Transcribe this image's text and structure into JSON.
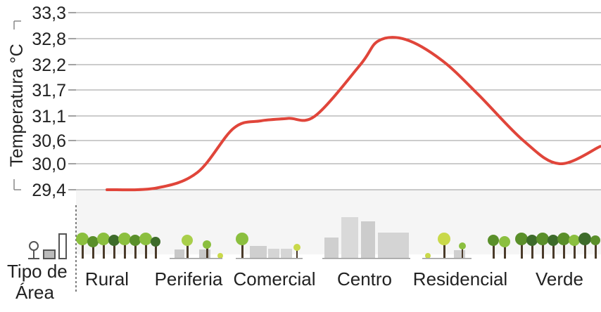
{
  "chart_data": {
    "type": "line",
    "title": "",
    "ylabel": "Temperatura °C",
    "xlabel": "Tipo de Área",
    "xlabel_lines": [
      "Tipo de",
      "Área"
    ],
    "yticks": [
      "33,3",
      "32,8",
      "32,2",
      "31,7",
      "31,1",
      "30,6",
      "30,0",
      "29,4"
    ],
    "ylim": [
      29.4,
      33.3
    ],
    "categories": [
      "Rural",
      "Periferia",
      "Comercial",
      "Centro",
      "Residencial",
      "Verde"
    ],
    "series": [
      {
        "color": "#e0453a",
        "x": [
          0,
          0.55,
          1.0,
          1.4,
          1.7,
          2.0,
          2.3,
          2.8,
          3.0,
          3.3,
          3.7,
          4.1,
          4.6,
          5.0,
          5.45
        ],
        "y": [
          29.4,
          29.44,
          29.8,
          30.85,
          31.0,
          31.05,
          31.1,
          32.2,
          32.75,
          32.78,
          32.3,
          31.6,
          30.6,
          30.0,
          30.45
        ]
      }
    ],
    "grid": true,
    "colors": {
      "line": "#e0453a",
      "grid": "#999999",
      "axis": "#444444"
    }
  }
}
